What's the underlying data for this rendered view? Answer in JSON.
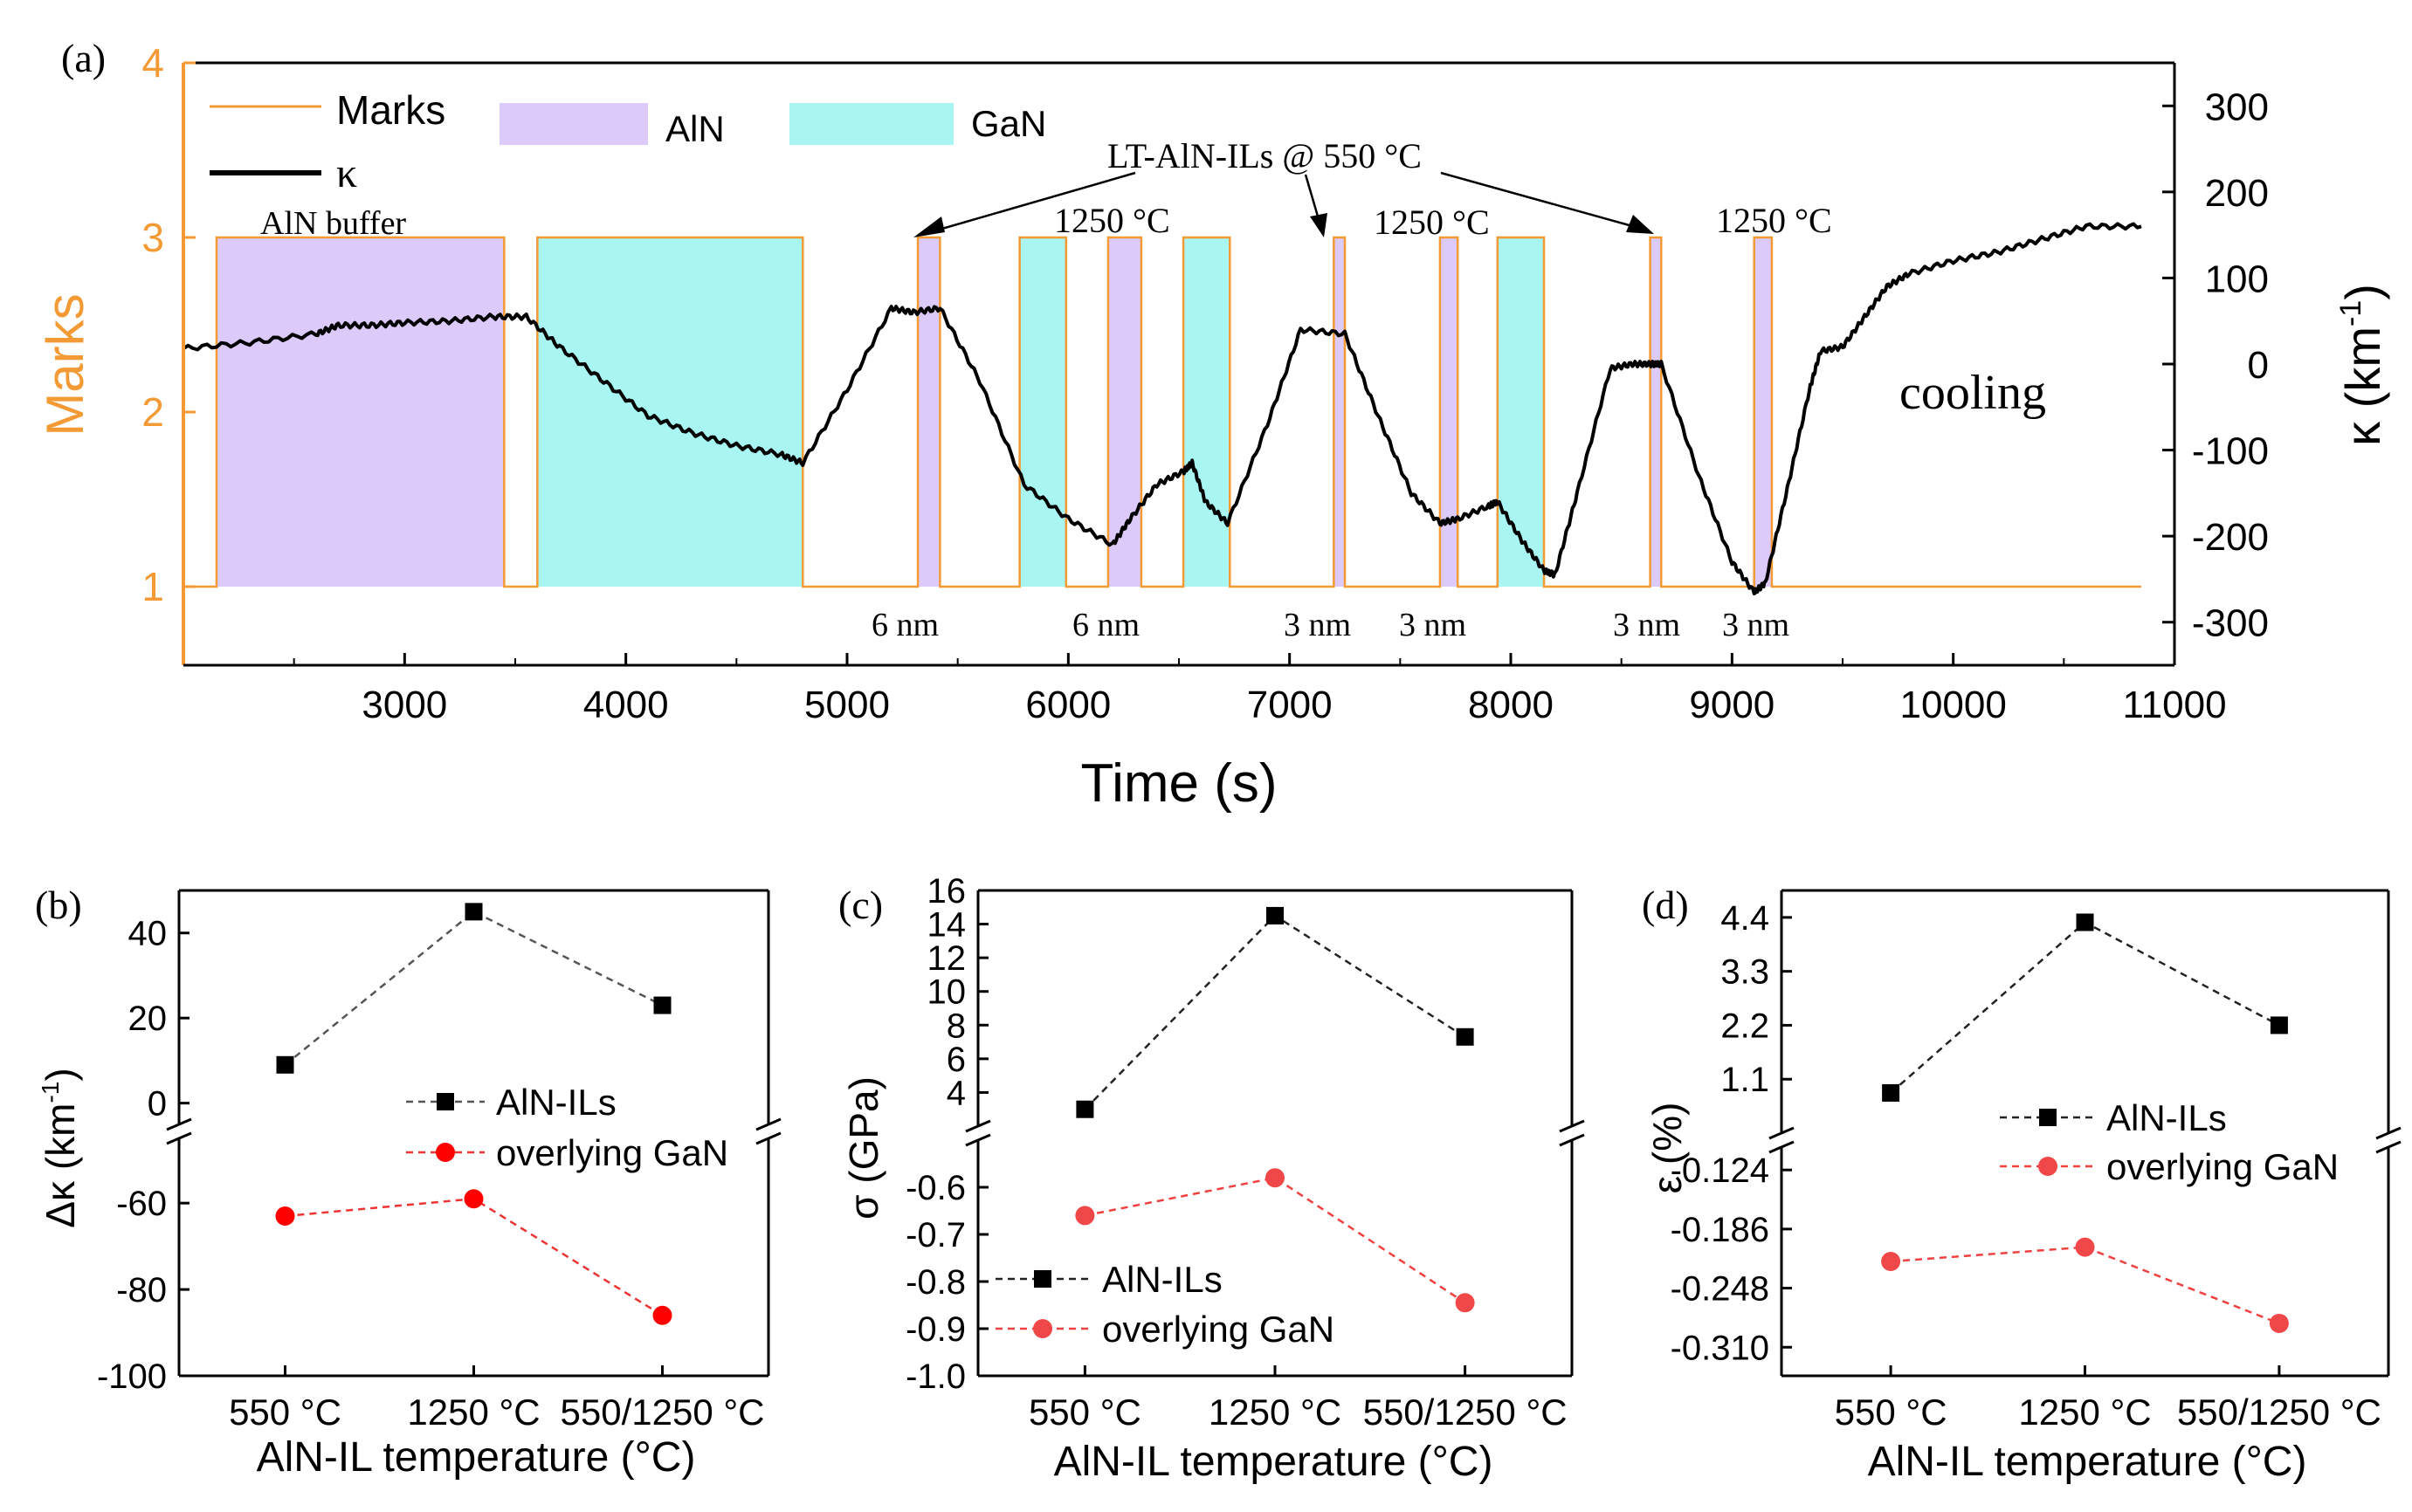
{
  "panel_a": {
    "label": "(a)",
    "xlabel": "Time (s)",
    "ylabel_left": "Marks",
    "ylabel_right": "κ (km",
    "ylabel_right_sup": "-1",
    "ylabel_right_close": ")",
    "colors": {
      "marks": "#f39a35",
      "aln": "#dccbfa",
      "gan": "#a8f5f2",
      "kappa": "#000000",
      "left_axis": "#f39a35"
    },
    "legend": {
      "marks": "Marks",
      "kappa": "κ",
      "aln": "AlN",
      "gan": "GaN"
    },
    "annotations": {
      "aln_buffer": "AlN buffer",
      "lt_aln": "LT-AlN-ILs @ 550 °C",
      "t1250_a": "1250 °C",
      "t1250_b": "1250 °C",
      "t1250_c": "1250 °C",
      "cooling": "cooling",
      "th1": "6 nm",
      "th2": "6 nm",
      "th3": "3 nm",
      "th4": "3 nm",
      "th5": "3 nm",
      "th6": "3 nm"
    },
    "xticks": [
      3000,
      4000,
      5000,
      6000,
      7000,
      8000,
      9000,
      10000,
      11000
    ],
    "xlim": [
      2000,
      11000
    ],
    "yticks_left": [
      1,
      2,
      3,
      4
    ],
    "ylim_left": [
      0.55,
      4.0
    ],
    "yticks_right": [
      300,
      200,
      100,
      0,
      -100,
      -200,
      -300
    ],
    "ylim_right": [
      -350,
      350
    ],
    "segments": [
      {
        "type": "AlN",
        "x0": 2150,
        "x1": 3450
      },
      {
        "type": "GaN",
        "x0": 3600,
        "x1": 4800
      },
      {
        "type": "AlN",
        "x0": 5320,
        "x1": 5420
      },
      {
        "type": "GaN",
        "x0": 5780,
        "x1": 5990
      },
      {
        "type": "AlN",
        "x0": 6180,
        "x1": 6330
      },
      {
        "type": "GaN",
        "x0": 6520,
        "x1": 6730
      },
      {
        "type": "AlN",
        "x0": 7200,
        "x1": 7250
      },
      {
        "type": "AlN",
        "x0": 7680,
        "x1": 7760
      },
      {
        "type": "GaN",
        "x0": 7940,
        "x1": 8150
      },
      {
        "type": "AlN",
        "x0": 8630,
        "x1": 8680
      },
      {
        "type": "AlN",
        "x0": 9100,
        "x1": 9180
      }
    ],
    "marks_x_end": 10850,
    "kappa": {
      "x": [
        2000,
        2300,
        2600,
        2700,
        2850,
        3000,
        3200,
        3400,
        3550,
        3700,
        3900,
        4100,
        4300,
        4500,
        4700,
        4800,
        5000,
        5200,
        5300,
        5420,
        5600,
        5800,
        6000,
        6200,
        6280,
        6400,
        6520,
        6560,
        6620,
        6720,
        6900,
        7050,
        7250,
        7400,
        7550,
        7680,
        7760,
        7900,
        7940,
        8050,
        8150,
        8200,
        8300,
        8450,
        8550,
        8630,
        8680,
        8850,
        9000,
        9100,
        9150,
        9250,
        9350,
        9400,
        9500,
        9600,
        9700,
        9800,
        10000,
        10200,
        10400,
        10600,
        10850
      ],
      "y": [
        18,
        25,
        35,
        45,
        45,
        48,
        50,
        55,
        55,
        20,
        -20,
        -60,
        -80,
        -95,
        -105,
        -115,
        -30,
        65,
        60,
        65,
        -20,
        -140,
        -180,
        -210,
        -180,
        -140,
        -125,
        -115,
        -160,
        -185,
        -70,
        40,
        35,
        -60,
        -150,
        -185,
        -180,
        -165,
        -160,
        -205,
        -240,
        -245,
        -150,
        -5,
        0,
        0,
        0,
        -130,
        -230,
        -265,
        -255,
        -145,
        -30,
        15,
        20,
        55,
        90,
        105,
        120,
        130,
        145,
        160,
        160
      ]
    }
  },
  "panel_b": {
    "label": "(b)",
    "xlabel": "AlN-IL temperature (°C)",
    "ylabel": "Δκ (km",
    "ylabel_sup": "-1",
    "ylabel_close": ")",
    "categories": [
      "550 °C",
      "1250 °C",
      "550/1250 °C"
    ],
    "upper": {
      "yticks": [
        40,
        20,
        0
      ],
      "ylim": [
        -5,
        50
      ]
    },
    "lower": {
      "yticks": [
        -60,
        -80,
        -100
      ],
      "ylim": [
        -100,
        -45
      ]
    },
    "legend": [
      "AlN-ILs",
      "overlying GaN"
    ],
    "series": [
      {
        "name": "AlN-ILs",
        "values": [
          9,
          45,
          23
        ],
        "color": "#555555",
        "marker": "square",
        "fill": "#000000"
      },
      {
        "name": "overlying GaN",
        "values": [
          -63,
          -59,
          -86
        ],
        "color": "#ee3333",
        "marker": "circle",
        "fill": "#ff0000"
      }
    ]
  },
  "panel_c": {
    "label": "(c)",
    "xlabel": "AlN-IL temperature (°C)",
    "ylabel": "σ (GPa)",
    "categories": [
      "550 °C",
      "1250 °C",
      "550/1250 °C"
    ],
    "upper": {
      "yticks": [
        16,
        14,
        12,
        10,
        8,
        6,
        4
      ],
      "ylim": [
        2,
        16
      ]
    },
    "lower": {
      "yticks": [
        -0.6,
        -0.7,
        -0.8,
        -0.9,
        -1.0
      ],
      "ylim": [
        -1.0,
        -0.5
      ]
    },
    "ytick_labels_lower": [
      "-0.6",
      "-0.7",
      "-0.8",
      "-0.9",
      "-1.0"
    ],
    "legend": [
      "AlN-ILs",
      "overlying GaN"
    ],
    "series": [
      {
        "name": "AlN-ILs",
        "values": [
          3.0,
          14.5,
          7.3
        ],
        "color": "#222222",
        "marker": "square",
        "fill": "#000000"
      },
      {
        "name": "overlying GaN",
        "values": [
          -0.66,
          -0.58,
          -0.845
        ],
        "color": "#f04040",
        "marker": "circle",
        "fill": "#f04848"
      }
    ]
  },
  "panel_d": {
    "label": "(d)",
    "xlabel": "AlN-IL temperature (°C)",
    "ylabel": "ε (%)",
    "categories": [
      "550 °C",
      "1250 °C",
      "550/1250 °C"
    ],
    "upper": {
      "yticks": [
        4.4,
        3.3,
        2.2,
        1.1
      ],
      "ylim": [
        0.0,
        4.95
      ]
    },
    "ytick_labels_upper": [
      "4.4",
      "3.3",
      "2.2",
      "1.1"
    ],
    "lower": {
      "yticks": [
        -0.124,
        -0.186,
        -0.248,
        -0.31
      ],
      "ylim": [
        -0.34,
        -0.1
      ]
    },
    "ytick_labels_lower": [
      "-0.124",
      "-0.186",
      "-0.248",
      "-0.310"
    ],
    "legend": [
      "AlN-ILs",
      "overlying GaN"
    ],
    "series": [
      {
        "name": "AlN-ILs",
        "values": [
          0.82,
          4.3,
          2.2
        ],
        "color": "#222222",
        "marker": "square",
        "fill": "#000000"
      },
      {
        "name": "overlying GaN",
        "values": [
          -0.22,
          -0.205,
          -0.285
        ],
        "color": "#f04040",
        "marker": "circle",
        "fill": "#f04848"
      }
    ]
  }
}
